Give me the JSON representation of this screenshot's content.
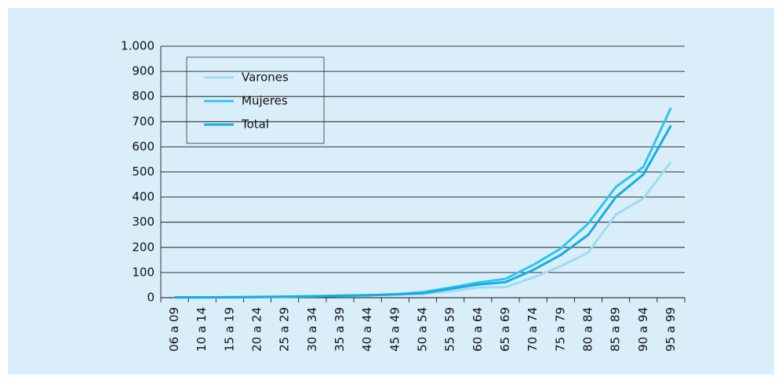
{
  "chart_data": {
    "type": "line",
    "categories": [
      "06 a 09",
      "10 a 14",
      "15 a 19",
      "20 a 24",
      "25 a 29",
      "30 a 34",
      "35 a 39",
      "40 a 44",
      "45 a 49",
      "50 a 54",
      "55 a 59",
      "60 a 64",
      "65 a 69",
      "70 a 74",
      "75 a 79",
      "80 a 84",
      "85 a 89",
      "90 a 94",
      "95 a 99"
    ],
    "series": [
      {
        "name": "Varones",
        "color": "#9fdcf3",
        "values": [
          2,
          2,
          2,
          3,
          5,
          6,
          8,
          10,
          12,
          15,
          25,
          40,
          42,
          80,
          125,
          180,
          330,
          395,
          540
        ]
      },
      {
        "name": "Mujeres",
        "color": "#2ec5ef",
        "values": [
          1,
          1,
          1,
          2,
          3,
          5,
          7,
          9,
          14,
          22,
          40,
          60,
          75,
          130,
          195,
          295,
          440,
          520,
          755
        ]
      },
      {
        "name": "Total",
        "color": "#18ade0",
        "values": [
          1,
          1,
          2,
          3,
          4,
          6,
          8,
          10,
          13,
          18,
          35,
          52,
          62,
          110,
          170,
          250,
          400,
          490,
          685
        ]
      }
    ],
    "ylim": [
      0,
      1000
    ],
    "yticks": [
      0,
      100,
      200,
      300,
      400,
      500,
      600,
      700,
      800,
      900,
      {
        "value": 1000,
        "label": "1.000"
      }
    ],
    "grid": true,
    "legend": "upper left"
  }
}
